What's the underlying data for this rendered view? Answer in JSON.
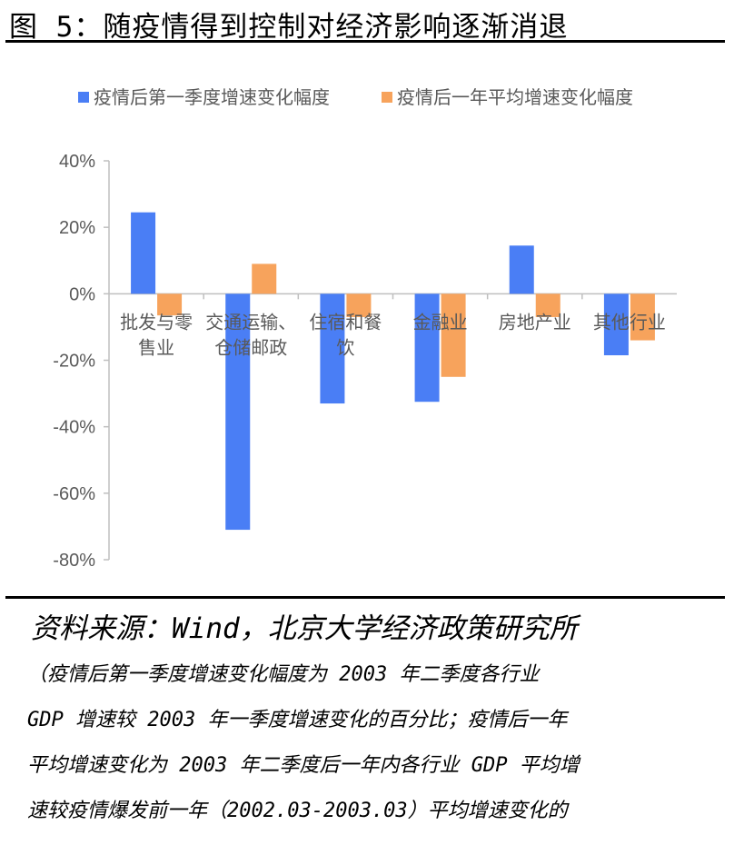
{
  "title": "图 5：随疫情得到控制对经济影响逐渐消退",
  "source": "资料来源：Wind，北京大学经济政策研究所",
  "note_lines": [
    "（疫情后第一季度增速变化幅度为 2003 年二季度各行业",
    "GDP 增速较 2003 年一季度增速变化的百分比；疫情后一年",
    "平均增速变化为 2003 年二季度后一年内各行业 GDP 平均增",
    "速较疫情爆发前一年（2002.03-2003.03）平均增速变化的"
  ],
  "chart_data": {
    "type": "bar",
    "categories": [
      [
        "批发与零",
        "售业"
      ],
      [
        "交通运输、",
        "仓储邮政"
      ],
      [
        "住宿和餐",
        "饮"
      ],
      [
        "金融业"
      ],
      [
        "房地产业"
      ],
      [
        "其他行业"
      ]
    ],
    "series": [
      {
        "name": "疫情后第一季度增速变化幅度",
        "color": "#4a7ef5",
        "values": [
          24.5,
          -71,
          -33,
          -32.5,
          14.5,
          -18.5
        ]
      },
      {
        "name": "疫情后一年平均增速变化幅度",
        "color": "#f7a35c",
        "values": [
          -6.5,
          9,
          -7,
          -25,
          -7,
          -14
        ]
      }
    ],
    "y_ticks": [
      "40%",
      "20%",
      "0%",
      "-20%",
      "-40%",
      "-60%",
      "-80%"
    ],
    "ylim": [
      -80,
      40
    ],
    "y_unit": "%",
    "grid": false,
    "legend_position": "top"
  }
}
